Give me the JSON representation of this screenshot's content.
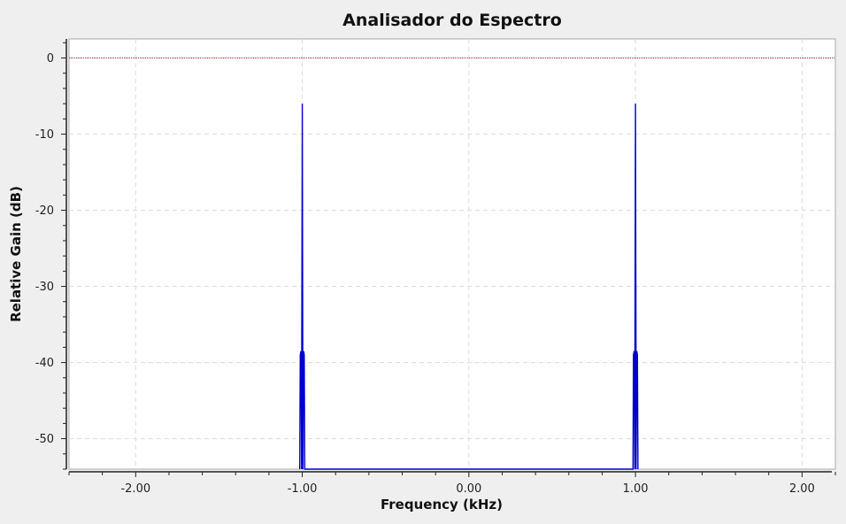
{
  "chart_data": {
    "type": "line",
    "title": "Analisador do Espectro",
    "xlabel": "Frequency (kHz)",
    "ylabel": "Relative Gain (dB)",
    "xlim": [
      -2.4,
      2.2
    ],
    "ylim": [
      -54,
      2.5
    ],
    "x_ticks": [
      -2.0,
      -1.0,
      0.0,
      1.0,
      2.0
    ],
    "x_tick_labels": [
      "-2.00",
      "-1.00",
      "0.00",
      "1.00",
      "2.00"
    ],
    "y_ticks": [
      0,
      -10,
      -20,
      -30,
      -40,
      -50
    ],
    "y_tick_labels": [
      "0",
      "-10",
      "-20",
      "-30",
      "-40",
      "-50"
    ],
    "grid": true,
    "colors": {
      "background": "#ffffff",
      "page": "#efefef",
      "grid": "#dcdcdc",
      "trace": "#0000cc",
      "reference_line": "#8a2a2a"
    },
    "series": [
      {
        "color": "#0000cc",
        "x": [
          -1.015,
          -1.012,
          -1.008,
          -1.004,
          -1.003,
          -1.0,
          -0.997,
          -0.996,
          -0.992,
          -0.988,
          -0.985,
          0.985,
          0.988,
          0.992,
          0.996,
          0.997,
          1.0,
          1.003,
          1.004,
          1.008,
          1.012,
          1.015
        ],
        "y": [
          -54,
          -39,
          -38.5,
          -54,
          -38.5,
          -6,
          -38.5,
          -54,
          -38.5,
          -39,
          -54,
          -54,
          -39,
          -38.5,
          -54,
          -38.5,
          -6,
          -38.5,
          -54,
          -38.5,
          -39,
          -54
        ]
      },
      {
        "color": "#8a2a2a",
        "x": [
          -2.4,
          2.2
        ],
        "y": [
          0,
          0
        ]
      }
    ]
  }
}
